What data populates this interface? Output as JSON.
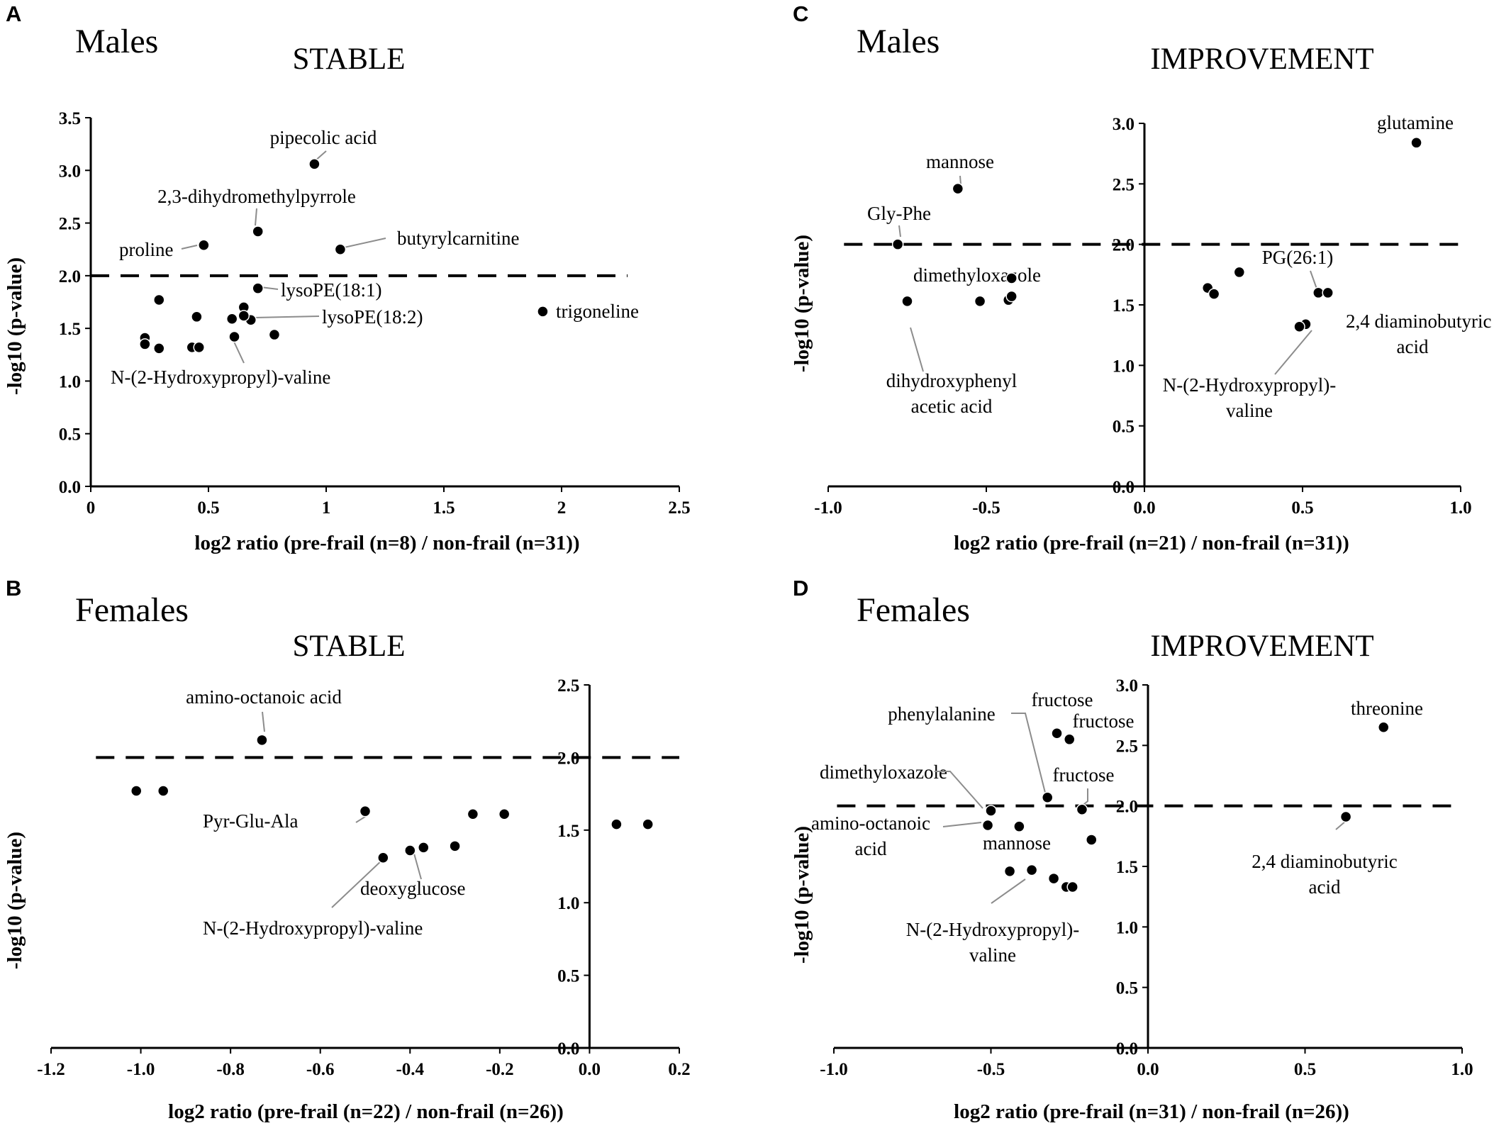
{
  "chart_data": [
    {
      "panel": "A",
      "type": "scatter",
      "group": "Males",
      "title": "STABLE",
      "xlabel": "log2 ratio (pre-frail (n=8) / non-frail (n=31))",
      "ylabel": "-log10 (p-value)",
      "xlim": [
        0,
        2.5
      ],
      "ylim": [
        0,
        3.5
      ],
      "xticks": [
        0,
        0.5,
        1,
        1.5,
        2,
        2.5
      ],
      "xtick_labels": [
        "0",
        "0.5",
        "1",
        "1.5",
        "2",
        "2.5"
      ],
      "yticks": [
        0,
        0.5,
        1,
        1.5,
        2,
        2.5,
        3,
        3.5
      ],
      "ytick_labels": [
        "0.0",
        "0.5",
        "1.0",
        "1.5",
        "2.0",
        "2.5",
        "3.0",
        "3.5"
      ],
      "yaxis_at_x": 0,
      "threshold": 2.0,
      "threshold_xrange": [
        0,
        2.28
      ],
      "points": [
        {
          "x": 0.95,
          "y": 3.06,
          "label": "pipecolic acid"
        },
        {
          "x": 0.71,
          "y": 2.42,
          "label": "2,3-dihydromethylpyrrole"
        },
        {
          "x": 0.48,
          "y": 2.29,
          "label": "proline"
        },
        {
          "x": 1.06,
          "y": 2.25,
          "label": "butyrylcarnitine"
        },
        {
          "x": 0.71,
          "y": 1.88,
          "label": "lysoPE(18:1)"
        },
        {
          "x": 0.68,
          "y": 1.58,
          "label": "lysoPE(18:2)"
        },
        {
          "x": 0.61,
          "y": 1.42,
          "label": "N-(2-Hydroxypropyl)-valine"
        },
        {
          "x": 1.92,
          "y": 1.66,
          "label": "trigoneline"
        },
        {
          "x": 0.29,
          "y": 1.77
        },
        {
          "x": 0.45,
          "y": 1.61
        },
        {
          "x": 0.6,
          "y": 1.59
        },
        {
          "x": 0.65,
          "y": 1.7
        },
        {
          "x": 0.65,
          "y": 1.62
        },
        {
          "x": 0.78,
          "y": 1.44
        },
        {
          "x": 0.23,
          "y": 1.41
        },
        {
          "x": 0.23,
          "y": 1.35
        },
        {
          "x": 0.29,
          "y": 1.31
        },
        {
          "x": 0.43,
          "y": 1.32
        },
        {
          "x": 0.46,
          "y": 1.32
        }
      ]
    },
    {
      "panel": "C",
      "type": "scatter",
      "group": "Males",
      "title": "IMPROVEMENT",
      "xlabel": "log2 ratio (pre-frail (n=21) / non-frail (n=31))",
      "ylabel": "-log10 (p-value)",
      "xlim": [
        -1.0,
        1.0
      ],
      "ylim": [
        0,
        3.0
      ],
      "xticks": [
        -1.0,
        -0.5,
        0.0,
        0.5,
        1.0
      ],
      "xtick_labels": [
        "-1.0",
        "-0.5",
        "0.0",
        "0.5",
        "1.0"
      ],
      "yticks": [
        0.5,
        1.0,
        1.5,
        2.0,
        2.5,
        3.0
      ],
      "ytick_labels": [
        "0.5",
        "1.0",
        "1.5",
        "2.0",
        "2.5",
        "3.0"
      ],
      "origin_label": "0.0",
      "yaxis_at_x": 0,
      "threshold": 2.0,
      "threshold_xrange": [
        -0.95,
        1.0
      ],
      "points": [
        {
          "x": 0.86,
          "y": 2.84,
          "label": "glutamine"
        },
        {
          "x": -0.59,
          "y": 2.46,
          "label": "mannose"
        },
        {
          "x": -0.78,
          "y": 2.0,
          "label": "Gly-Phe"
        },
        {
          "x": -0.42,
          "y": 1.72,
          "label": "dimethyloxazole"
        },
        {
          "x": -0.75,
          "y": 1.53,
          "label": "dihydroxyphenyl acetic acid"
        },
        {
          "x": 0.55,
          "y": 1.6,
          "label": "PG(26:1)"
        },
        {
          "x": 0.51,
          "y": 1.34,
          "label": "2,4 diaminobutyric acid"
        },
        {
          "x": 0.49,
          "y": 1.32,
          "label": "N-(2-Hydroxypropyl)-valine"
        },
        {
          "x": -0.52,
          "y": 1.53
        },
        {
          "x": -0.43,
          "y": 1.54
        },
        {
          "x": -0.42,
          "y": 1.57
        },
        {
          "x": 0.2,
          "y": 1.64
        },
        {
          "x": 0.22,
          "y": 1.59
        },
        {
          "x": 0.3,
          "y": 1.77
        },
        {
          "x": 0.58,
          "y": 1.6
        }
      ]
    },
    {
      "panel": "B",
      "type": "scatter",
      "group": "Females",
      "title": "STABLE",
      "xlabel": "log2 ratio (pre-frail (n=22) / non-frail (n=26))",
      "ylabel": "-log10 (p-value)",
      "xlim": [
        -1.2,
        0.2
      ],
      "ylim": [
        0,
        2.5
      ],
      "xticks": [
        -1.2,
        -1.0,
        -0.8,
        -0.6,
        -0.4,
        -0.2,
        0.0,
        0.2
      ],
      "xtick_labels": [
        "-1.2",
        "-1.0",
        "-0.8",
        "-0.6",
        "-0.4",
        "-0.2",
        "0.0",
        "0.2"
      ],
      "yticks": [
        0.5,
        1.0,
        1.5,
        2.0,
        2.5
      ],
      "ytick_labels": [
        "0.5",
        "1.0",
        "1.5",
        "2.0",
        "2.5"
      ],
      "origin_label": "0.0",
      "yaxis_at_x": 0,
      "threshold": 2.0,
      "threshold_xrange": [
        -1.1,
        0.2
      ],
      "points": [
        {
          "x": -0.73,
          "y": 2.12,
          "label": "amino-octanoic acid"
        },
        {
          "x": -0.5,
          "y": 1.63,
          "label": "Pyr-Glu-Ala"
        },
        {
          "x": -0.4,
          "y": 1.36,
          "label": "deoxyglucose"
        },
        {
          "x": -0.46,
          "y": 1.31,
          "label": "N-(2-Hydroxypropyl)-valine"
        },
        {
          "x": -1.01,
          "y": 1.77
        },
        {
          "x": -0.95,
          "y": 1.77
        },
        {
          "x": -0.37,
          "y": 1.38
        },
        {
          "x": -0.3,
          "y": 1.39
        },
        {
          "x": -0.26,
          "y": 1.61
        },
        {
          "x": -0.19,
          "y": 1.61
        },
        {
          "x": 0.06,
          "y": 1.54
        },
        {
          "x": 0.13,
          "y": 1.54
        }
      ]
    },
    {
      "panel": "D",
      "type": "scatter",
      "group": "Females",
      "title": "IMPROVEMENT",
      "xlabel": "log2 ratio (pre-frail (n=31) / non-frail (n=26))",
      "ylabel": "-log10 (p-value)",
      "xlim": [
        -1.0,
        1.0
      ],
      "ylim": [
        0,
        3.0
      ],
      "xticks": [
        -1.0,
        -0.5,
        0.0,
        0.5,
        1.0
      ],
      "xtick_labels": [
        "-1.0",
        "-0.5",
        "0.0",
        "0.5",
        "1.0"
      ],
      "yticks": [
        0.5,
        1.0,
        1.5,
        2.0,
        2.5,
        3.0
      ],
      "ytick_labels": [
        "0.5",
        "1.0",
        "1.5",
        "2.0",
        "2.5",
        "3.0"
      ],
      "origin_label": "0.0",
      "yaxis_at_x": 0,
      "threshold": 2.0,
      "threshold_xrange": [
        -0.99,
        1.0
      ],
      "points": [
        {
          "x": 0.75,
          "y": 2.65,
          "label": "threonine"
        },
        {
          "x": -0.29,
          "y": 2.6,
          "label": "fructose"
        },
        {
          "x": -0.25,
          "y": 2.55,
          "label": "fructose"
        },
        {
          "x": -0.32,
          "y": 2.07,
          "label": "phenylalanine"
        },
        {
          "x": -0.21,
          "y": 1.97,
          "label": "fructose"
        },
        {
          "x": -0.5,
          "y": 1.96,
          "label": "dimethyloxazole"
        },
        {
          "x": -0.51,
          "y": 1.84,
          "label": "amino-octanoic acid"
        },
        {
          "x": -0.41,
          "y": 1.83,
          "label": "mannose"
        },
        {
          "x": -0.37,
          "y": 1.47,
          "label": "N-(2-Hydroxypropyl)-valine"
        },
        {
          "x": 0.63,
          "y": 1.91,
          "label": "2,4 diaminobutyric acid"
        },
        {
          "x": -0.18,
          "y": 1.72
        },
        {
          "x": -0.44,
          "y": 1.46
        },
        {
          "x": -0.3,
          "y": 1.4
        },
        {
          "x": -0.26,
          "y": 1.33
        },
        {
          "x": -0.24,
          "y": 1.33
        }
      ]
    }
  ],
  "labels": {
    "A": {
      "pipecolic": "pipecolic acid",
      "dihydro": "2,3-dihydromethylpyrrole",
      "proline": "proline",
      "butyryl": "butyrylcarnitine",
      "lyso181": "lysoPE(18:1)",
      "lyso182": "lysoPE(18:2)",
      "trigoneline": "trigoneline",
      "nhpv": "N-(2-Hydroxypropyl)-valine"
    },
    "C": {
      "glutamine": "glutamine",
      "mannose": "mannose",
      "glyphe": "Gly-Phe",
      "dmo": "dimethyloxazole",
      "dhpa_1": "dihydroxyphenyl",
      "dhpa_2": "acetic acid",
      "pg": "PG(26:1)",
      "dab_1": "2,4 diaminobutyric",
      "dab_2": "acid",
      "nhpv_1": "N-(2-Hydroxypropyl)-",
      "nhpv_2": "valine"
    },
    "B": {
      "aoa": "amino-octanoic acid",
      "pga": "Pyr-Glu-Ala",
      "deoxy": "deoxyglucose",
      "nhpv": "N-(2-Hydroxypropyl)-valine"
    },
    "D": {
      "threonine": "threonine",
      "fru1": "fructose",
      "fru2": "fructose",
      "fru3": "fructose",
      "phe": "phenylalanine",
      "dmo": "dimethyloxazole",
      "aoa_1": "amino-octanoic",
      "aoa_2": "acid",
      "mannose": "mannose",
      "nhpv_1": "N-(2-Hydroxypropyl)-",
      "nhpv_2": "valine",
      "dab_1": "2,4 diaminobutyric",
      "dab_2": "acid"
    }
  }
}
